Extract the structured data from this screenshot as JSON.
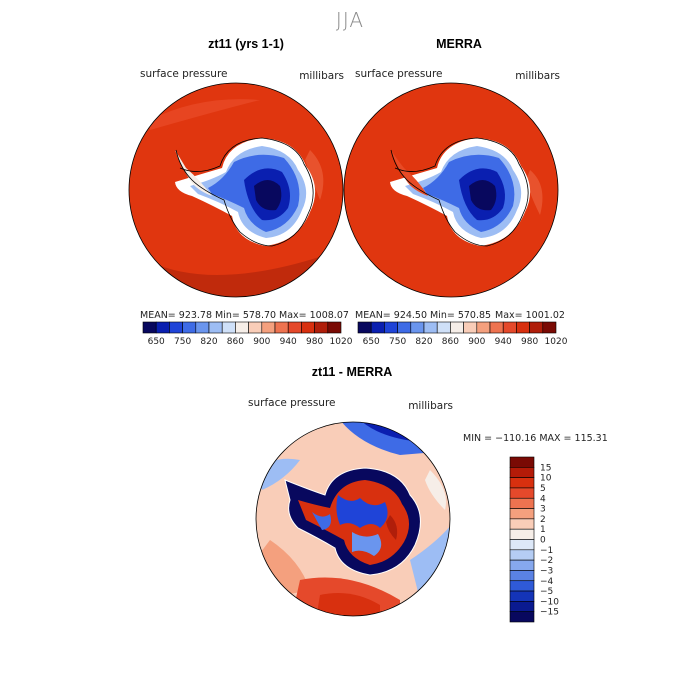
{
  "figure": {
    "title": "JJA"
  },
  "panels": [
    {
      "title": "zt11 (yrs 1-1)",
      "variable": "surface pressure",
      "units": "millibars",
      "mean_text": "MEAN= 923.78",
      "min_text": "Min= 578.70",
      "max_text": "Max= 1008.07"
    },
    {
      "title": "MERRA",
      "variable": "surface pressure",
      "units": "millibars",
      "mean_text": "MEAN= 924.50",
      "min_text": "Min= 570.85",
      "max_text": "Max= 1001.02"
    }
  ],
  "colorbar_top": {
    "tick_labels": [
      "650",
      "750",
      "820",
      "860",
      "900",
      "940",
      "980",
      "1020"
    ],
    "colors": [
      "#08085e",
      "#0a1fb0",
      "#1f44d8",
      "#3e6be6",
      "#6a95ee",
      "#9dbdf4",
      "#cfe0f8",
      "#f6eee8",
      "#f9cdb8",
      "#f4a07e",
      "#ee7350",
      "#e5492b",
      "#d8300f",
      "#b01e0a",
      "#7a0a04"
    ]
  },
  "diff_panel": {
    "title": "zt11 - MERRA",
    "variable": "surface pressure",
    "units": "millibars",
    "minmax_text": "MIN = −110.16  MAX = 115.31"
  },
  "colorbar_diff": {
    "tick_labels": [
      "15",
      "10",
      "5",
      "4",
      "3",
      "2",
      "1",
      "0",
      "−1",
      "−2",
      "−3",
      "−4",
      "−5",
      "−10",
      "−15"
    ],
    "colors": [
      "#7a0a04",
      "#b41b08",
      "#d8300f",
      "#e5492b",
      "#ee7350",
      "#f4a07e",
      "#f9cdb8",
      "#f6eee8",
      "#dde8f8",
      "#b5cdf4",
      "#86a8ee",
      "#5a82e4",
      "#2f5ad8",
      "#1434b8",
      "#0a1a90",
      "#08085e"
    ]
  },
  "chart_data": [
    {
      "type": "heatmap",
      "title": "zt11 (yrs 1-1)",
      "variable": "surface pressure",
      "units": "millibars",
      "stats": {
        "mean": 923.78,
        "min": 578.7,
        "max": 1008.07
      },
      "colorbar_ticks": [
        650,
        750,
        820,
        860,
        900,
        940,
        980,
        1020
      ]
    },
    {
      "type": "heatmap",
      "title": "MERRA",
      "variable": "surface pressure",
      "units": "millibars",
      "stats": {
        "mean": 924.5,
        "min": 570.85,
        "max": 1001.02
      },
      "colorbar_ticks": [
        650,
        750,
        820,
        860,
        900,
        940,
        980,
        1020
      ]
    },
    {
      "type": "heatmap",
      "title": "zt11 - MERRA",
      "variable": "surface pressure",
      "units": "millibars",
      "stats": {
        "min": -110.16,
        "max": 115.31
      },
      "colorbar_ticks": [
        15,
        10,
        5,
        4,
        3,
        2,
        1,
        0,
        -1,
        -2,
        -3,
        -4,
        -5,
        -10,
        -15
      ]
    }
  ]
}
